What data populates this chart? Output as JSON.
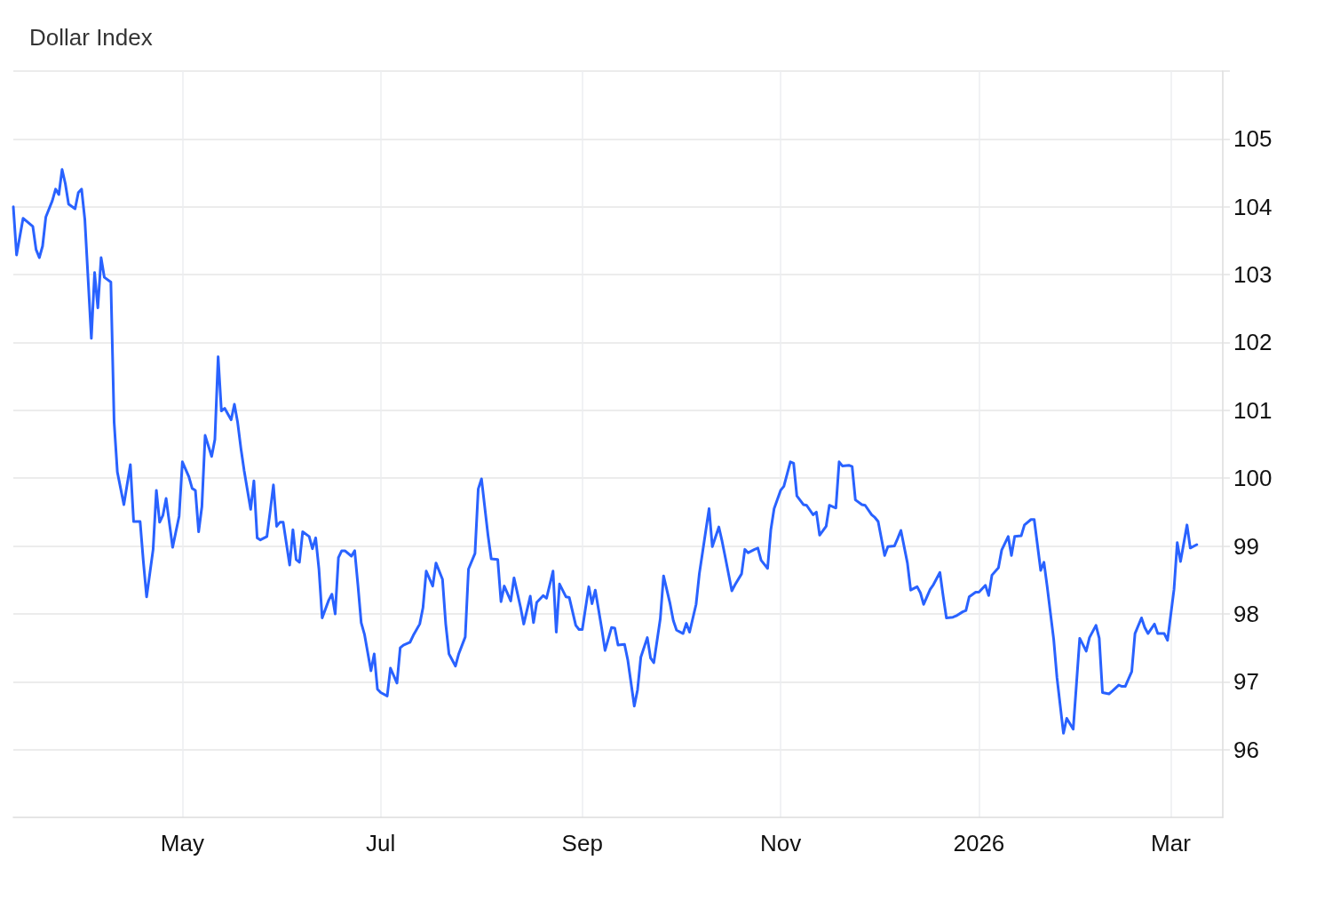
{
  "chart_data": {
    "type": "line",
    "title": "Dollar Index",
    "color": "#2962ff",
    "marker": "none",
    "line_style": "solid",
    "grid": true,
    "xlim": [
      "2025-03-10",
      "2026-03-17"
    ],
    "xticks": [
      {
        "value": "2025-05-01",
        "label": "May"
      },
      {
        "value": "2025-07-01",
        "label": "Jul"
      },
      {
        "value": "2025-09-01",
        "label": "Sep"
      },
      {
        "value": "2025-11-01",
        "label": "Nov"
      },
      {
        "value": "2026-01-01",
        "label": "2026"
      },
      {
        "value": "2026-03-01",
        "label": "Mar"
      }
    ],
    "ylim": [
      95,
      106
    ],
    "yticks": [
      96,
      97,
      98,
      99,
      100,
      101,
      102,
      103,
      104,
      105,
      {
        "value": 106,
        "label": null
      }
    ],
    "x": [
      "2025-03-10",
      "2025-03-11",
      "2025-03-13",
      "2025-03-16",
      "2025-03-17",
      "2025-03-18",
      "2025-03-19",
      "2025-03-20",
      "2025-03-22",
      "2025-03-23",
      "2025-03-24",
      "2025-03-25",
      "2025-03-26",
      "2025-03-27",
      "2025-03-29",
      "2025-03-30",
      "2025-03-31",
      "2025-04-01",
      "2025-04-03",
      "2025-04-04",
      "2025-04-05",
      "2025-04-06",
      "2025-04-07",
      "2025-04-09",
      "2025-04-10",
      "2025-04-11",
      "2025-04-12",
      "2025-04-13",
      "2025-04-15",
      "2025-04-16",
      "2025-04-18",
      "2025-04-19",
      "2025-04-20",
      "2025-04-22",
      "2025-04-23",
      "2025-04-24",
      "2025-04-25",
      "2025-04-26",
      "2025-04-28",
      "2025-04-29",
      "2025-04-30",
      "2025-05-01",
      "2025-05-03",
      "2025-05-04",
      "2025-05-05",
      "2025-05-06",
      "2025-05-07",
      "2025-05-08",
      "2025-05-10",
      "2025-05-11",
      "2025-05-12",
      "2025-05-13",
      "2025-05-14",
      "2025-05-16",
      "2025-05-17",
      "2025-05-18",
      "2025-05-19",
      "2025-05-20",
      "2025-05-22",
      "2025-05-23",
      "2025-05-24",
      "2025-05-25",
      "2025-05-27",
      "2025-05-28",
      "2025-05-29",
      "2025-05-30",
      "2025-05-31",
      "2025-06-01",
      "2025-06-03",
      "2025-06-04",
      "2025-06-05",
      "2025-06-06",
      "2025-06-07",
      "2025-06-09",
      "2025-06-10",
      "2025-06-11",
      "2025-06-12",
      "2025-06-13",
      "2025-06-15",
      "2025-06-16",
      "2025-06-17",
      "2025-06-18",
      "2025-06-19",
      "2025-06-20",
      "2025-06-22",
      "2025-06-23",
      "2025-06-24",
      "2025-06-25",
      "2025-06-26",
      "2025-06-28",
      "2025-06-29",
      "2025-06-30",
      "2025-07-01",
      "2025-07-03",
      "2025-07-04",
      "2025-07-06",
      "2025-07-07",
      "2025-07-08",
      "2025-07-10",
      "2025-07-11",
      "2025-07-13",
      "2025-07-14",
      "2025-07-15",
      "2025-07-17",
      "2025-07-18",
      "2025-07-20",
      "2025-07-21",
      "2025-07-22",
      "2025-07-24",
      "2025-07-25",
      "2025-07-27",
      "2025-07-28",
      "2025-07-30",
      "2025-07-31",
      "2025-08-01",
      "2025-08-03",
      "2025-08-04",
      "2025-08-06",
      "2025-08-07",
      "2025-08-08",
      "2025-08-10",
      "2025-08-11",
      "2025-08-13",
      "2025-08-14",
      "2025-08-16",
      "2025-08-17",
      "2025-08-18",
      "2025-08-20",
      "2025-08-21",
      "2025-08-23",
      "2025-08-24",
      "2025-08-25",
      "2025-08-27",
      "2025-08-28",
      "2025-08-30",
      "2025-08-31",
      "2025-09-01",
      "2025-09-03",
      "2025-09-04",
      "2025-09-05",
      "2025-09-07",
      "2025-09-08",
      "2025-09-10",
      "2025-09-11",
      "2025-09-12",
      "2025-09-14",
      "2025-09-15",
      "2025-09-17",
      "2025-09-18",
      "2025-09-19",
      "2025-09-21",
      "2025-09-22",
      "2025-09-23",
      "2025-09-25",
      "2025-09-26",
      "2025-09-28",
      "2025-09-29",
      "2025-09-30",
      "2025-10-02",
      "2025-10-03",
      "2025-10-04",
      "2025-10-06",
      "2025-10-07",
      "2025-10-08",
      "2025-10-10",
      "2025-10-11",
      "2025-10-13",
      "2025-10-14",
      "2025-10-15",
      "2025-10-17",
      "2025-10-18",
      "2025-10-20",
      "2025-10-21",
      "2025-10-22",
      "2025-10-24",
      "2025-10-25",
      "2025-10-26",
      "2025-10-28",
      "2025-10-29",
      "2025-10-30",
      "2025-11-01",
      "2025-11-02",
      "2025-11-04",
      "2025-11-05",
      "2025-11-06",
      "2025-11-08",
      "2025-11-09",
      "2025-11-11",
      "2025-11-12",
      "2025-11-13",
      "2025-11-15",
      "2025-11-16",
      "2025-11-18",
      "2025-11-19",
      "2025-11-20",
      "2025-11-22",
      "2025-11-23",
      "2025-11-24",
      "2025-11-26",
      "2025-11-27",
      "2025-11-29",
      "2025-11-30",
      "2025-12-01",
      "2025-12-03",
      "2025-12-04",
      "2025-12-06",
      "2025-12-07",
      "2025-12-08",
      "2025-12-10",
      "2025-12-11",
      "2025-12-13",
      "2025-12-14",
      "2025-12-15",
      "2025-12-17",
      "2025-12-18",
      "2025-12-20",
      "2025-12-21",
      "2025-12-22",
      "2025-12-24",
      "2025-12-25",
      "2025-12-27",
      "2025-12-28",
      "2025-12-29",
      "2025-12-31",
      "2026-01-01",
      "2026-01-03",
      "2026-01-04",
      "2026-01-05",
      "2026-01-07",
      "2026-01-08",
      "2026-01-10",
      "2026-01-11",
      "2026-01-12",
      "2026-01-14",
      "2026-01-15",
      "2026-01-17",
      "2026-01-18",
      "2026-01-20",
      "2026-01-21",
      "2026-01-22",
      "2026-01-24",
      "2026-01-25",
      "2026-01-27",
      "2026-01-28",
      "2026-01-30",
      "2026-01-31",
      "2026-02-01",
      "2026-02-03",
      "2026-02-04",
      "2026-02-06",
      "2026-02-07",
      "2026-02-08",
      "2026-02-10",
      "2026-02-11",
      "2026-02-13",
      "2026-02-14",
      "2026-02-15",
      "2026-02-17",
      "2026-02-18",
      "2026-02-20",
      "2026-02-21",
      "2026-02-22",
      "2026-02-24",
      "2026-02-25",
      "2026-02-27",
      "2026-02-28",
      "2026-03-02",
      "2026-03-03",
      "2026-03-04",
      "2026-03-06",
      "2026-03-07",
      "2026-03-09"
    ],
    "values": [
      104.0,
      103.29,
      103.83,
      103.71,
      103.37,
      103.25,
      103.42,
      103.85,
      104.09,
      104.26,
      104.18,
      104.55,
      104.34,
      104.04,
      103.97,
      104.21,
      104.26,
      103.81,
      102.06,
      103.03,
      102.51,
      103.25,
      102.96,
      102.89,
      100.83,
      100.09,
      99.85,
      99.61,
      100.2,
      99.36,
      99.36,
      98.77,
      98.25,
      98.95,
      99.82,
      99.35,
      99.45,
      99.7,
      98.98,
      99.21,
      99.44,
      100.24,
      100.02,
      99.85,
      99.82,
      99.21,
      99.58,
      100.63,
      100.32,
      100.57,
      101.79,
      100.99,
      101.03,
      100.86,
      101.09,
      100.82,
      100.44,
      100.11,
      99.54,
      99.96,
      99.12,
      99.09,
      99.14,
      99.51,
      99.9,
      99.29,
      99.35,
      99.35,
      98.72,
      99.24,
      98.8,
      98.76,
      99.21,
      99.14,
      98.96,
      99.12,
      98.66,
      97.94,
      98.2,
      98.29,
      98.0,
      98.83,
      98.93,
      98.93,
      98.85,
      98.93,
      98.42,
      97.87,
      97.7,
      97.16,
      97.41,
      96.89,
      96.84,
      96.79,
      97.2,
      96.98,
      97.5,
      97.54,
      97.58,
      97.68,
      97.85,
      98.09,
      98.63,
      98.41,
      98.75,
      98.51,
      97.85,
      97.41,
      97.23,
      97.41,
      97.66,
      98.66,
      98.89,
      99.84,
      99.99,
      99.16,
      98.81,
      98.8,
      98.18,
      98.41,
      98.19,
      98.53,
      98.1,
      97.85,
      98.26,
      97.87,
      98.17,
      98.27,
      98.23,
      98.63,
      97.73,
      98.44,
      98.25,
      98.24,
      97.83,
      97.77,
      97.77,
      98.4,
      98.15,
      98.35,
      97.78,
      97.46,
      97.8,
      97.79,
      97.54,
      97.55,
      97.32,
      96.64,
      96.88,
      97.36,
      97.65,
      97.35,
      97.28,
      97.93,
      98.56,
      98.15,
      97.9,
      97.76,
      97.71,
      97.86,
      97.73,
      98.14,
      98.59,
      98.91,
      99.55,
      98.99,
      99.28,
      99.07,
      98.83,
      98.34,
      98.43,
      98.59,
      98.95,
      98.9,
      98.95,
      98.97,
      98.79,
      98.67,
      99.24,
      99.55,
      99.82,
      99.88,
      100.24,
      100.22,
      99.74,
      99.61,
      99.6,
      99.46,
      99.5,
      99.16,
      99.29,
      99.6,
      99.56,
      100.24,
      100.18,
      100.19,
      100.17,
      99.68,
      99.61,
      99.6,
      99.46,
      99.42,
      99.36,
      98.86,
      98.99,
      99.0,
      99.11,
      99.23,
      98.75,
      98.35,
      98.4,
      98.31,
      98.14,
      98.36,
      98.43,
      98.61,
      98.26,
      97.94,
      97.95,
      97.97,
      98.03,
      98.05,
      98.25,
      98.32,
      98.32,
      98.42,
      98.27,
      98.57,
      98.68,
      98.94,
      99.14,
      98.86,
      99.14,
      99.15,
      99.31,
      99.39,
      99.39,
      98.64,
      98.76,
      98.4,
      97.62,
      97.06,
      96.24,
      96.46,
      96.3,
      96.97,
      97.64,
      97.45,
      97.65,
      97.83,
      97.64,
      96.84,
      96.82,
      96.86,
      96.95,
      96.93,
      96.93,
      97.15,
      97.71,
      97.94,
      97.8,
      97.71,
      97.85,
      97.71,
      97.71,
      97.61,
      98.36,
      99.05,
      98.77,
      99.31,
      98.97,
      99.02
    ]
  }
}
